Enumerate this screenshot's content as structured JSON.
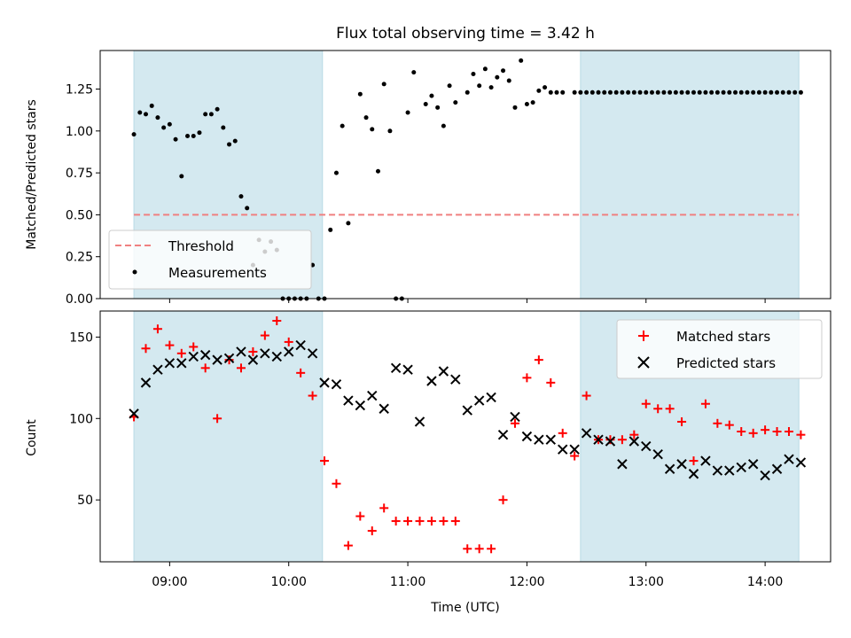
{
  "chart_data": [
    {
      "type": "scatter",
      "title": "Flux total observing time = 3.42 h",
      "xlabel": "",
      "ylabel": "Matched/Predicted stars",
      "xlim": [
        "08:25",
        "14:33"
      ],
      "ylim": [
        0,
        1.48
      ],
      "yticks": [
        {
          "v": 0,
          "label": "0.00"
        },
        {
          "v": 0.25,
          "label": "0.25"
        },
        {
          "v": 0.5,
          "label": "0.50"
        },
        {
          "v": 0.75,
          "label": "0.75"
        },
        {
          "v": 1.0,
          "label": "1.00"
        },
        {
          "v": 1.25,
          "label": "1.25"
        }
      ],
      "shaded_intervals": [
        [
          "08:42",
          "10:17"
        ],
        [
          "12:27",
          "14:17"
        ]
      ],
      "shade_color": "#d4e9f0",
      "threshold": {
        "name": "Threshold",
        "value": 0.5,
        "color": "#f08080"
      },
      "legend_placement": "lower-left",
      "series": [
        {
          "name": "Measurements",
          "color": "#000000",
          "x": [
            "08:42",
            "08:45",
            "08:48",
            "08:51",
            "08:54",
            "08:57",
            "09:00",
            "09:03",
            "09:06",
            "09:09",
            "09:12",
            "09:15",
            "09:18",
            "09:21",
            "09:24",
            "09:27",
            "09:30",
            "09:33",
            "09:36",
            "09:39",
            "09:42",
            "09:45",
            "09:48",
            "09:51",
            "09:54",
            "09:57",
            "10:00",
            "10:03",
            "10:06",
            "10:09",
            "10:12",
            "10:15",
            "10:18",
            "10:21",
            "10:24",
            "10:27",
            "10:30",
            "10:36",
            "10:39",
            "10:42",
            "10:45",
            "10:48",
            "10:51",
            "10:54",
            "10:57",
            "11:00",
            "11:03",
            "11:09",
            "11:12",
            "11:15",
            "11:18",
            "11:21",
            "11:24",
            "11:30",
            "11:33",
            "11:36",
            "11:39",
            "11:42",
            "11:45",
            "11:48",
            "11:51",
            "11:54",
            "11:57",
            "12:00",
            "12:03",
            "12:06",
            "12:09",
            "12:12",
            "12:15",
            "12:18",
            "12:24",
            "12:27",
            "12:30",
            "12:33",
            "12:36",
            "12:39",
            "12:42",
            "12:45",
            "12:48",
            "12:51",
            "12:54",
            "12:57",
            "13:00",
            "13:03",
            "13:06",
            "13:09",
            "13:12",
            "13:15",
            "13:18",
            "13:21",
            "13:24",
            "13:27",
            "13:30",
            "13:33",
            "13:36",
            "13:39",
            "13:42",
            "13:45",
            "13:48",
            "13:51",
            "13:54",
            "13:57",
            "14:00",
            "14:03",
            "14:06",
            "14:09",
            "14:12",
            "14:15",
            "14:18"
          ],
          "y": [
            0.98,
            1.11,
            1.1,
            1.15,
            1.08,
            1.02,
            1.04,
            0.95,
            0.73,
            0.97,
            0.97,
            0.99,
            1.1,
            1.1,
            1.13,
            1.02,
            0.92,
            0.94,
            0.61,
            0.54,
            0.2,
            0.35,
            0.28,
            0.34,
            0.29,
            0.0,
            0.0,
            0.0,
            0.0,
            0.0,
            0.2,
            0.0,
            0.0,
            0.41,
            0.75,
            1.03,
            0.45,
            1.22,
            1.08,
            1.01,
            0.76,
            1.28,
            1.0,
            0.0,
            0.0,
            1.11,
            1.35,
            1.16,
            1.21,
            1.14,
            1.03,
            1.27,
            1.17,
            1.23,
            1.34,
            1.27,
            1.37,
            1.26,
            1.32,
            1.36,
            1.3,
            1.14,
            1.42,
            1.16,
            1.17,
            1.24,
            1.26,
            1.23,
            1.23,
            1.23,
            1.23,
            1.23,
            1.23,
            1.23,
            1.23,
            1.23,
            1.23,
            1.23,
            1.23,
            1.23,
            1.23,
            1.23,
            1.23,
            1.23,
            1.23,
            1.23,
            1.23,
            1.23,
            1.23,
            1.23,
            1.23,
            1.23,
            1.23,
            1.23,
            1.23,
            1.23,
            1.23,
            1.23,
            1.23,
            1.23,
            1.23,
            1.23,
            1.23,
            1.23,
            1.23,
            1.23,
            1.23,
            1.23,
            1.23
          ]
        }
      ]
    },
    {
      "type": "scatter",
      "title": "",
      "xlabel": "Time (UTC)",
      "ylabel": "Count",
      "xlim": [
        "08:25",
        "14:33"
      ],
      "ylim": [
        12,
        166
      ],
      "yticks": [
        {
          "v": 50,
          "label": "50"
        },
        {
          "v": 100,
          "label": "100"
        },
        {
          "v": 150,
          "label": "150"
        }
      ],
      "xticks": [
        "09:00",
        "10:00",
        "11:00",
        "12:00",
        "13:00",
        "14:00"
      ],
      "shaded_intervals": [
        [
          "08:42",
          "10:17"
        ],
        [
          "12:27",
          "14:17"
        ]
      ],
      "shade_color": "#d4e9f0",
      "legend_placement": "upper-right",
      "series": [
        {
          "name": "Matched stars",
          "marker": "plus",
          "color": "#ff0000",
          "x": [
            "08:42",
            "08:48",
            "08:54",
            "09:00",
            "09:06",
            "09:12",
            "09:18",
            "09:24",
            "09:30",
            "09:36",
            "09:42",
            "09:48",
            "09:54",
            "10:00",
            "10:06",
            "10:12",
            "10:18",
            "10:24",
            "10:30",
            "10:36",
            "10:42",
            "10:48",
            "10:54",
            "11:00",
            "11:06",
            "11:12",
            "11:18",
            "11:24",
            "11:30",
            "11:36",
            "11:42",
            "11:48",
            "11:54",
            "12:00",
            "12:06",
            "12:12",
            "12:18",
            "12:24",
            "12:30",
            "12:36",
            "12:42",
            "12:48",
            "12:54",
            "13:00",
            "13:06",
            "13:12",
            "13:18",
            "13:24",
            "13:30",
            "13:36",
            "13:42",
            "13:48",
            "13:54",
            "14:00",
            "14:06",
            "14:12",
            "14:18"
          ],
          "y": [
            101,
            143,
            155,
            145,
            140,
            144,
            131,
            100,
            136,
            131,
            141,
            151,
            160,
            147,
            128,
            114,
            74,
            60,
            22,
            40,
            31,
            45,
            37,
            37,
            37,
            37,
            37,
            37,
            20,
            20,
            20,
            50,
            97,
            125,
            136,
            122,
            91,
            77,
            114,
            87,
            87,
            87,
            90,
            109,
            106,
            106,
            98,
            74,
            109,
            97,
            96,
            92,
            91,
            93,
            92,
            92,
            90
          ]
        },
        {
          "name": "Predicted stars",
          "marker": "x",
          "color": "#000000",
          "x": [
            "08:42",
            "08:48",
            "08:54",
            "09:00",
            "09:06",
            "09:12",
            "09:18",
            "09:24",
            "09:30",
            "09:36",
            "09:42",
            "09:48",
            "09:54",
            "10:00",
            "10:06",
            "10:12",
            "10:18",
            "10:24",
            "10:30",
            "10:36",
            "10:42",
            "10:48",
            "10:54",
            "11:00",
            "11:06",
            "11:12",
            "11:18",
            "11:24",
            "11:30",
            "11:36",
            "11:42",
            "11:48",
            "11:54",
            "12:00",
            "12:06",
            "12:12",
            "12:18",
            "12:24",
            "12:30",
            "12:36",
            "12:42",
            "12:48",
            "12:54",
            "13:00",
            "13:06",
            "13:12",
            "13:18",
            "13:24",
            "13:30",
            "13:36",
            "13:42",
            "13:48",
            "13:54",
            "14:00",
            "14:06",
            "14:12",
            "14:18"
          ],
          "y": [
            103,
            122,
            130,
            134,
            134,
            138,
            139,
            136,
            137,
            141,
            136,
            140,
            138,
            141,
            145,
            140,
            122,
            121,
            111,
            108,
            114,
            106,
            131,
            130,
            98,
            123,
            129,
            124,
            105,
            111,
            113,
            90,
            101,
            89,
            87,
            87,
            81,
            81,
            91,
            87,
            86,
            72,
            86,
            83,
            78,
            69,
            72,
            66,
            74,
            68,
            68,
            70,
            72,
            65,
            69,
            75,
            73
          ]
        }
      ]
    }
  ]
}
